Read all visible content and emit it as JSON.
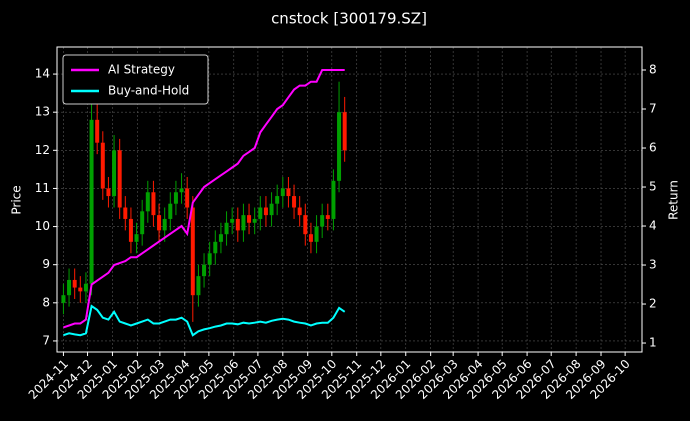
{
  "chart_data": {
    "type": "candlestick",
    "title": "cnstock [300179.SZ]",
    "ylabel": "Price",
    "y2label": "Return",
    "x": [
      "2024-11-01",
      "2024-11-08",
      "2024-11-15",
      "2024-11-22",
      "2024-11-29",
      "2024-12-06",
      "2024-12-13",
      "2024-12-20",
      "2024-12-27",
      "2025-01-03",
      "2025-01-10",
      "2025-01-17",
      "2025-01-24",
      "2025-01-31",
      "2025-02-07",
      "2025-02-14",
      "2025-02-21",
      "2025-02-28",
      "2025-03-07",
      "2025-03-14",
      "2025-03-21",
      "2025-03-28",
      "2025-04-04",
      "2025-04-11",
      "2025-04-18",
      "2025-04-25",
      "2025-05-02",
      "2025-05-09",
      "2025-05-16",
      "2025-05-23",
      "2025-05-30",
      "2025-06-06",
      "2025-06-13",
      "2025-06-20",
      "2025-06-27",
      "2025-07-04",
      "2025-07-11",
      "2025-07-18",
      "2025-07-25",
      "2025-08-01",
      "2025-08-08",
      "2025-08-15",
      "2025-08-22",
      "2025-08-29",
      "2025-09-05",
      "2025-09-12",
      "2025-09-19",
      "2025-09-26",
      "2025-10-03",
      "2025-10-10",
      "2025-10-17"
    ],
    "open": [
      8.0,
      8.2,
      8.6,
      8.4,
      8.3,
      8.5,
      12.8,
      12.2,
      11.0,
      10.8,
      12.0,
      10.5,
      10.2,
      9.6,
      9.8,
      10.4,
      10.9,
      10.3,
      9.9,
      10.2,
      10.6,
      10.9,
      11.0,
      10.5,
      8.2,
      8.7,
      9.0,
      9.3,
      9.6,
      9.8,
      10.1,
      10.2,
      9.9,
      10.3,
      10.1,
      10.2,
      10.5,
      10.3,
      10.6,
      10.8,
      11.0,
      10.8,
      10.5,
      10.3,
      9.8,
      9.6,
      10.0,
      10.3,
      10.2,
      11.2,
      13.0
    ],
    "high": [
      8.5,
      8.9,
      8.9,
      8.7,
      8.8,
      13.6,
      13.2,
      12.5,
      11.3,
      12.4,
      12.3,
      10.8,
      10.5,
      10.1,
      10.7,
      11.2,
      11.2,
      10.6,
      10.5,
      10.9,
      11.2,
      11.4,
      11.3,
      10.8,
      9.0,
      9.3,
      9.6,
      9.9,
      10.1,
      10.4,
      10.5,
      10.5,
      10.6,
      10.6,
      10.5,
      10.8,
      10.8,
      10.9,
      11.1,
      11.3,
      11.3,
      11.1,
      10.8,
      10.6,
      10.1,
      10.3,
      10.6,
      10.6,
      11.5,
      13.8,
      13.4
    ],
    "low": [
      7.7,
      7.9,
      8.1,
      8.0,
      8.0,
      8.2,
      11.9,
      10.7,
      10.5,
      10.5,
      10.2,
      9.9,
      9.3,
      9.3,
      9.5,
      10.1,
      10.0,
      9.6,
      9.6,
      9.9,
      10.3,
      10.6,
      10.2,
      7.5,
      7.9,
      8.4,
      8.7,
      9.0,
      9.3,
      9.5,
      9.8,
      9.6,
      9.6,
      9.8,
      9.8,
      9.9,
      10.0,
      10.0,
      10.3,
      10.5,
      10.5,
      10.2,
      10.0,
      9.5,
      9.3,
      9.3,
      9.7,
      9.9,
      9.9,
      10.9,
      11.7
    ],
    "close": [
      8.2,
      8.6,
      8.4,
      8.3,
      8.5,
      12.8,
      12.2,
      11.0,
      10.8,
      12.0,
      10.5,
      10.2,
      9.6,
      9.8,
      10.4,
      10.9,
      10.3,
      9.9,
      10.2,
      10.6,
      10.9,
      11.0,
      10.5,
      8.2,
      8.7,
      9.0,
      9.3,
      9.6,
      9.8,
      10.1,
      10.2,
      9.9,
      10.3,
      10.1,
      10.2,
      10.5,
      10.3,
      10.6,
      10.8,
      11.0,
      10.8,
      10.5,
      10.3,
      9.8,
      9.6,
      10.0,
      10.3,
      10.2,
      11.2,
      13.0,
      12.0
    ],
    "up_color": "#00a000",
    "down_color": "#ff1a00",
    "series": [
      {
        "name": "AI Strategy",
        "color": "#ff00ff",
        "axis": "y2",
        "values": [
          1.4,
          1.45,
          1.5,
          1.5,
          1.6,
          2.5,
          2.6,
          2.7,
          2.8,
          3.0,
          3.05,
          3.1,
          3.2,
          3.2,
          3.3,
          3.4,
          3.5,
          3.6,
          3.7,
          3.8,
          3.9,
          4.0,
          3.8,
          4.6,
          4.8,
          5.0,
          5.1,
          5.2,
          5.3,
          5.4,
          5.5,
          5.6,
          5.8,
          5.9,
          6.0,
          6.4,
          6.6,
          6.8,
          7.0,
          7.1,
          7.3,
          7.5,
          7.6,
          7.6,
          7.7,
          7.7,
          8.0,
          8.0,
          8.0,
          8.0,
          8.0
        ]
      },
      {
        "name": "Buy-and-Hold",
        "color": "#00ffff",
        "axis": "y2",
        "values": [
          1.2,
          1.25,
          1.22,
          1.2,
          1.25,
          1.95,
          1.85,
          1.65,
          1.6,
          1.8,
          1.55,
          1.5,
          1.45,
          1.5,
          1.55,
          1.6,
          1.5,
          1.5,
          1.55,
          1.6,
          1.6,
          1.65,
          1.55,
          1.2,
          1.3,
          1.35,
          1.38,
          1.42,
          1.45,
          1.5,
          1.5,
          1.48,
          1.52,
          1.5,
          1.52,
          1.55,
          1.52,
          1.57,
          1.6,
          1.62,
          1.6,
          1.55,
          1.52,
          1.5,
          1.45,
          1.5,
          1.52,
          1.52,
          1.65,
          1.9,
          1.8
        ]
      }
    ],
    "legend": "upper left",
    "grid": true,
    "xlim": [
      "2024-10-24",
      "2026-10-22"
    ],
    "xticks": [
      "2024-11",
      "2024-12",
      "2025-01",
      "2025-02",
      "2025-03",
      "2025-04",
      "2025-05",
      "2025-06",
      "2025-07",
      "2025-08",
      "2025-09",
      "2025-10",
      "2025-11",
      "2025-12",
      "2026-01",
      "2026-02",
      "2026-03",
      "2026-04",
      "2026-05",
      "2026-06",
      "2026-07",
      "2026-08",
      "2026-09",
      "2026-10"
    ],
    "ylim": [
      6.71,
      14.71
    ],
    "yticks": [
      7,
      8,
      9,
      10,
      11,
      12,
      13,
      14
    ],
    "y2lim": [
      0.77,
      8.59
    ],
    "y2ticks": [
      1,
      2,
      3,
      4,
      5,
      6,
      7,
      8
    ]
  }
}
